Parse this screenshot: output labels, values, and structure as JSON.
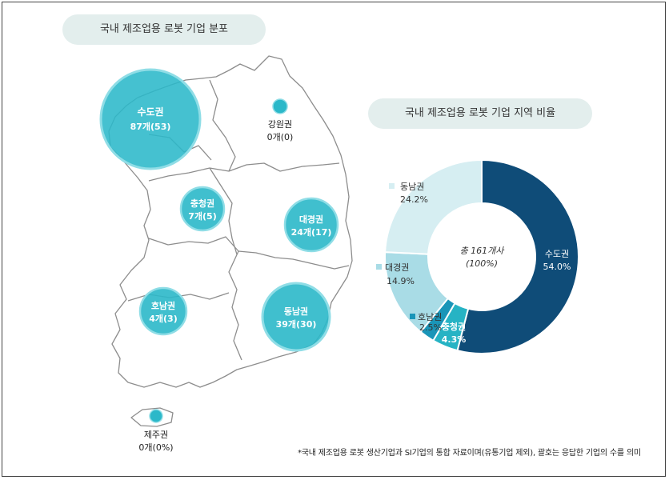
{
  "map": {
    "title": "국내 제조업용 로봇 기업 분포",
    "regions": [
      {
        "name": "수도권",
        "value": "87개(53)"
      },
      {
        "name": "강원권",
        "value": "0개(0)"
      },
      {
        "name": "충청권",
        "value": "7개(5)"
      },
      {
        "name": "대경권",
        "value": "24개(17)"
      },
      {
        "name": "호남권",
        "value": "4개(3)"
      },
      {
        "name": "동남권",
        "value": "39개(30)"
      },
      {
        "name": "제주권",
        "value": "0개(0%)"
      }
    ]
  },
  "donut": {
    "title": "국내 제조업용 로봇 기업 지역 비율",
    "center_line1": "총 161개사",
    "center_line2": "(100%)"
  },
  "footnote": "*국내 제조업용 로봇 생산기업과 SI기업의 통합 자료이며(유통기업 제외), 괄호는 응답한 기업의 수를 의미",
  "colors": {
    "bubble": "#2bb8c9",
    "bubble_stroke": "#8fdde6",
    "sudo": "#0f4c78",
    "chungcheong": "#26b3c4",
    "honam": "#1a95b8",
    "daegyeong": "#a9dce6",
    "dongnam": "#d6eef2"
  },
  "chart_data": [
    {
      "type": "pie",
      "title": "국내 제조업용 로봇 기업 지역 비율",
      "categories": [
        "수도권",
        "충청권",
        "호남권",
        "대경권",
        "동남권"
      ],
      "values": [
        54.0,
        4.3,
        2.5,
        14.9,
        24.2
      ],
      "labels": [
        "54.0%",
        "4.3%",
        "2.5%",
        "14.9%",
        "24.2%"
      ],
      "total_label": "총 161개사",
      "total_percent": "(100%)"
    },
    {
      "type": "bubble",
      "title": "국내 제조업용 로봇 기업 분포",
      "categories": [
        "수도권",
        "강원권",
        "충청권",
        "대경권",
        "호남권",
        "동남권",
        "제주권"
      ],
      "values": [
        87,
        0,
        7,
        24,
        4,
        39,
        0
      ],
      "responded": [
        53,
        0,
        5,
        17,
        3,
        30,
        0
      ]
    }
  ]
}
